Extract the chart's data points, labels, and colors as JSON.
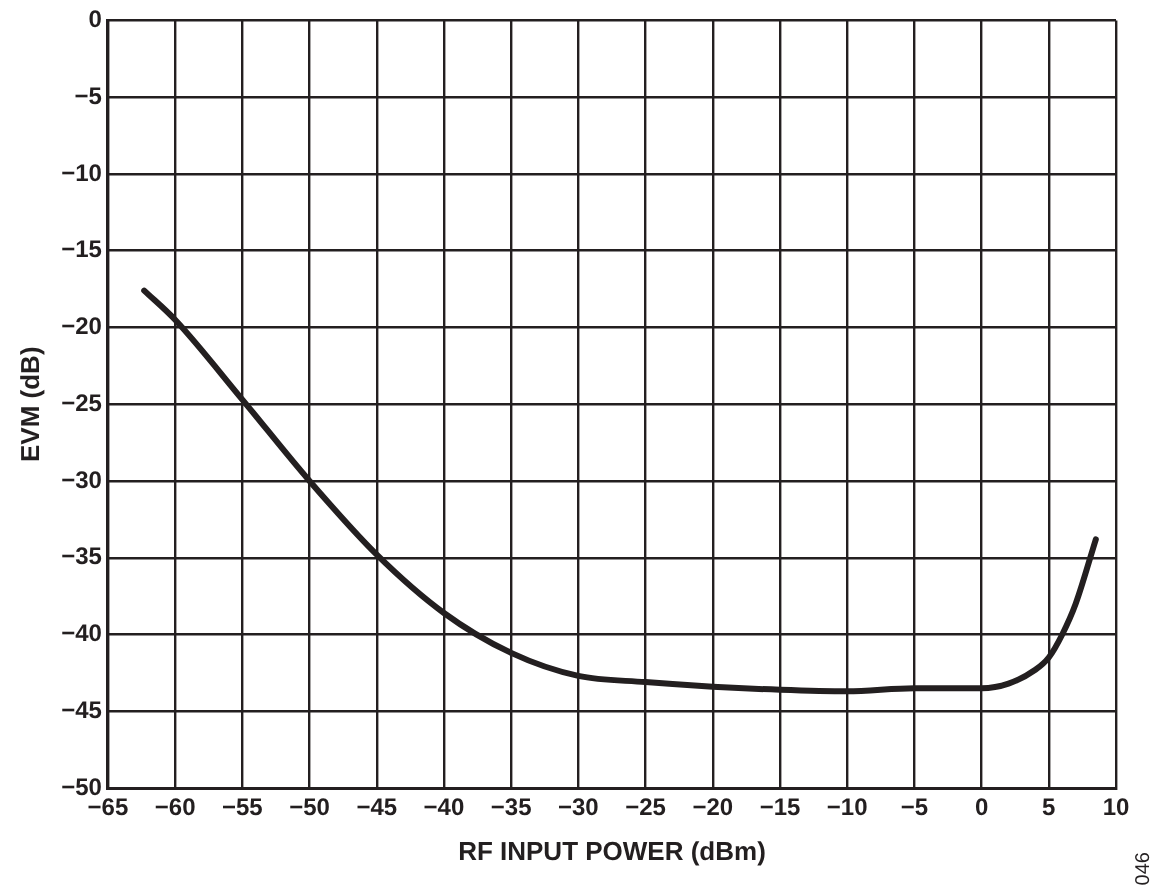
{
  "chart_data": {
    "type": "line",
    "xlabel": "RF INPUT POWER (dBm)",
    "ylabel": "EVM (dB)",
    "xlim": [
      -65,
      10
    ],
    "ylim": [
      -50,
      0
    ],
    "xticks": [
      {
        "value": -65,
        "label": "−65"
      },
      {
        "value": -60,
        "label": "−60"
      },
      {
        "value": -55,
        "label": "−55"
      },
      {
        "value": -50,
        "label": "−50"
      },
      {
        "value": -45,
        "label": "−45"
      },
      {
        "value": -40,
        "label": "−40"
      },
      {
        "value": -35,
        "label": "−35"
      },
      {
        "value": -30,
        "label": "−30"
      },
      {
        "value": -25,
        "label": "−25"
      },
      {
        "value": -20,
        "label": "−20"
      },
      {
        "value": -15,
        "label": "−15"
      },
      {
        "value": -10,
        "label": "−10"
      },
      {
        "value": -5,
        "label": "−5"
      },
      0,
      5,
      10
    ],
    "yticks": [
      {
        "value": -50,
        "label": "−50"
      },
      {
        "value": -45,
        "label": "−45"
      },
      {
        "value": -40,
        "label": "−40"
      },
      {
        "value": -35,
        "label": "−35"
      },
      {
        "value": -30,
        "label": "−30"
      },
      {
        "value": -25,
        "label": "−25"
      },
      {
        "value": -20,
        "label": "−20"
      },
      {
        "value": -15,
        "label": "−15"
      },
      {
        "value": -10,
        "label": "−10"
      },
      {
        "value": -5,
        "label": "−5"
      },
      0
    ],
    "grid": true,
    "marker": "none",
    "line_style": "solid",
    "annotations": [
      "046"
    ],
    "series": [
      {
        "color": "#231f20",
        "x": [
          -62.3,
          -60,
          -55,
          -50,
          -45,
          -40,
          -35,
          -30,
          -25,
          -20,
          -15,
          -10,
          -5,
          0,
          2,
          4,
          5,
          6,
          7,
          8.5
        ],
        "values": [
          -17.6,
          -19.5,
          -24.7,
          -30,
          -34.8,
          -38.6,
          -41.2,
          -42.7,
          -43.1,
          -43.4,
          -43.6,
          -43.7,
          -43.5,
          -43.5,
          -43.2,
          -42.3,
          -41.5,
          -40,
          -38,
          -33.8
        ]
      }
    ]
  }
}
